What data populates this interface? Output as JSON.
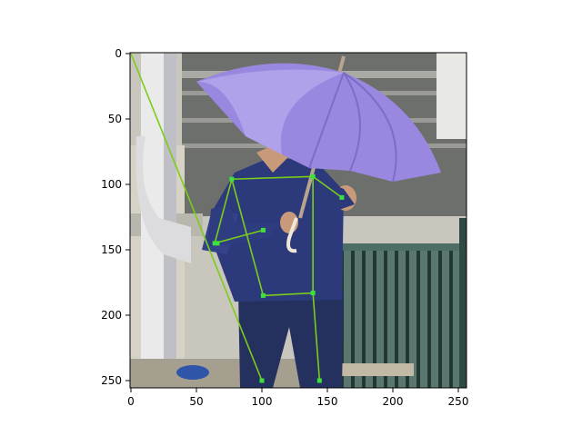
{
  "figure": {
    "x_ticks": [
      "0",
      "50",
      "100",
      "150",
      "200",
      "250"
    ],
    "y_ticks": [
      "0",
      "50",
      "100",
      "150",
      "200",
      "250"
    ],
    "colors": {
      "skeleton_line": "#7ccc1a",
      "keypoint": "#3de03d",
      "umbrella": "#9a88e0",
      "shirt": "#2c3a7c",
      "pants": "#24305e",
      "railing": "#2f4a44",
      "background_wall": "#c9c6bd"
    }
  },
  "chart_data": {
    "type": "scatter",
    "title": "",
    "xlabel": "",
    "ylabel": "",
    "xlim": [
      0,
      256
    ],
    "ylim": [
      256,
      0
    ],
    "image_content": "person in dark blue clothes holding a purple umbrella beside a green railing",
    "keypoints": [
      {
        "name": "p0",
        "x": 0,
        "y": 0
      },
      {
        "name": "p1",
        "x": 100,
        "y": 250
      },
      {
        "name": "p2",
        "x": 77,
        "y": 96
      },
      {
        "name": "p3",
        "x": 139,
        "y": 94
      },
      {
        "name": "p4",
        "x": 64,
        "y": 145
      },
      {
        "name": "p5",
        "x": 101,
        "y": 135
      },
      {
        "name": "p6",
        "x": 161,
        "y": 110
      },
      {
        "name": "p7",
        "x": 101,
        "y": 185
      },
      {
        "name": "p8",
        "x": 139,
        "y": 183
      },
      {
        "name": "p9",
        "x": 144,
        "y": 250
      },
      {
        "name": "p10",
        "x": 66,
        "y": 145
      }
    ],
    "edges": [
      [
        0,
        1
      ],
      [
        2,
        3
      ],
      [
        2,
        4
      ],
      [
        4,
        5
      ],
      [
        3,
        6
      ],
      [
        2,
        7
      ],
      [
        3,
        8
      ],
      [
        7,
        8
      ],
      [
        8,
        9
      ],
      [
        4,
        10
      ]
    ]
  }
}
